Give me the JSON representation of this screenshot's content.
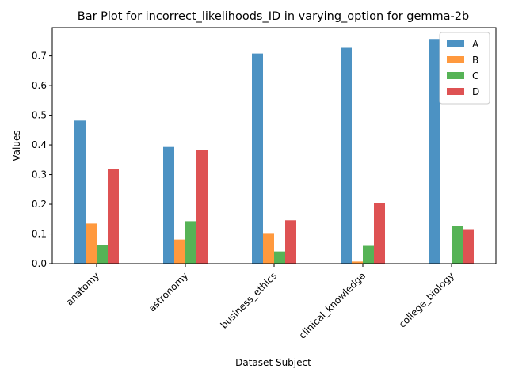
{
  "chart_data": {
    "type": "bar",
    "title": "Bar Plot for incorrect_likelihoods_ID in varying_option for gemma-2b",
    "xlabel": "Dataset Subject",
    "ylabel": "Values",
    "categories": [
      "anatomy",
      "astronomy",
      "business_ethics",
      "clinical_knowledge",
      "college_biology"
    ],
    "series": [
      {
        "name": "A",
        "color": "#1f77b4",
        "values": [
          0.482,
          0.393,
          0.708,
          0.727,
          0.757
        ]
      },
      {
        "name": "B",
        "color": "#ff7f0e",
        "values": [
          0.135,
          0.081,
          0.103,
          0.007,
          0.0
        ]
      },
      {
        "name": "C",
        "color": "#2ca02c",
        "values": [
          0.062,
          0.143,
          0.041,
          0.06,
          0.127
        ]
      },
      {
        "name": "D",
        "color": "#d62728",
        "values": [
          0.32,
          0.382,
          0.146,
          0.205,
          0.116
        ]
      }
    ],
    "ylim": [
      0,
      0.795
    ],
    "yticks": [
      "0.0",
      "0.1",
      "0.2",
      "0.3",
      "0.4",
      "0.5",
      "0.6",
      "0.7"
    ],
    "legend_position": "top-right",
    "grid": false
  }
}
